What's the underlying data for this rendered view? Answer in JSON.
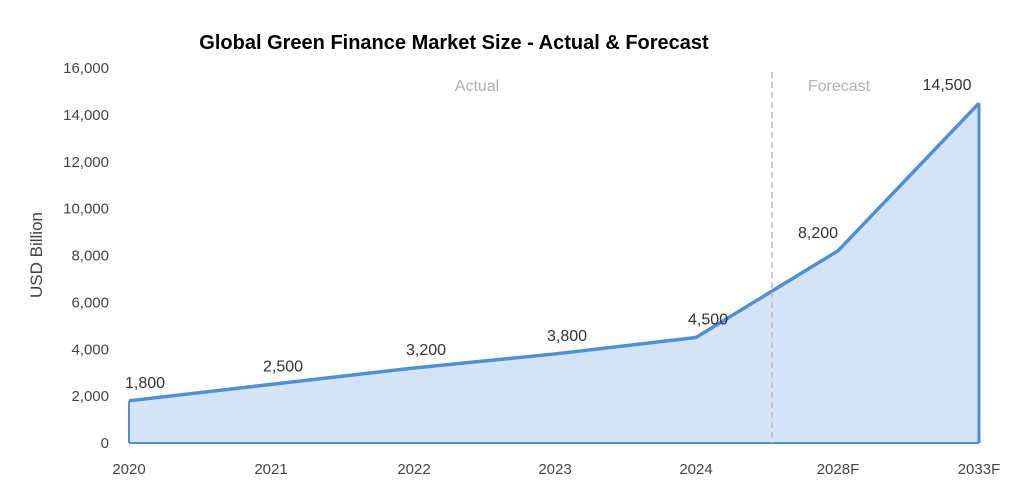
{
  "chart_data": {
    "type": "area",
    "title": "Global Green Finance Market Size - Actual & Forecast",
    "ylabel": "USD Billion",
    "xlabel": "",
    "categories": [
      "2020",
      "2021",
      "2022",
      "2023",
      "2024",
      "2028F",
      "2033F"
    ],
    "series": [
      {
        "values": [
          1800,
          2500,
          3200,
          3800,
          4500,
          8200,
          14500
        ]
      }
    ],
    "data_labels": [
      "1,800",
      "2,500",
      "3,200",
      "3,800",
      "4,500",
      "8,200",
      "14,500"
    ],
    "ylim": [
      0,
      16000
    ],
    "yticks": [
      0,
      2000,
      4000,
      6000,
      8000,
      10000,
      12000,
      14000,
      16000
    ],
    "ytick_labels": [
      "0",
      "2,000",
      "4,000",
      "6,000",
      "8,000",
      "10,000",
      "12,000",
      "14,000",
      "16,000"
    ],
    "regions": [
      {
        "label": "Actual"
      },
      {
        "label": "Forecast"
      }
    ],
    "divider_after_category_index": 4,
    "grid": false,
    "colors": {
      "line": "#4e8fd6",
      "fill": "#d4e4f6",
      "divider": "#bbbbbb"
    }
  }
}
